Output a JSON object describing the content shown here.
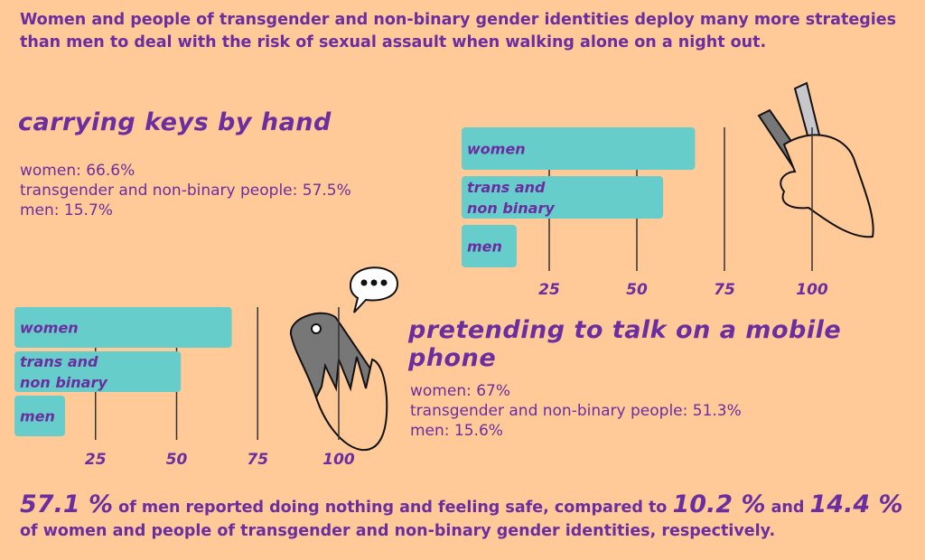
{
  "intro": "Women and people of transgender and non-binary gender identities deploy many more strategies than men to deal with the risk of sexual assault when walking alone on a night out.",
  "colors": {
    "background": "#FFCA97",
    "text": "#6A2EA0",
    "bar": "#66CDCA"
  },
  "keys_section": {
    "heading": "carrying keys by hand",
    "stats": [
      "women: 66.6%",
      "transgender and non-binary people: 57.5%",
      "men: 15.7%"
    ]
  },
  "phone_section": {
    "heading": "pretending to talk on a mobile phone",
    "stats": [
      "women: 67%",
      "transgender and non-binary people: 51.3%",
      "men: 15.6%"
    ]
  },
  "chart_data": [
    {
      "type": "bar",
      "title": "carrying keys by hand",
      "categories": [
        "women",
        "trans and\nnon binary",
        "men"
      ],
      "values": [
        66.6,
        57.5,
        15.7
      ],
      "xticks": [
        "25",
        "50",
        "75",
        "100"
      ],
      "xlim": [
        0,
        100
      ],
      "orientation": "horizontal",
      "grid": true
    },
    {
      "type": "bar",
      "title": "pretending to talk on a mobile phone",
      "categories": [
        "women",
        "trans and\nnon binary",
        "men"
      ],
      "values": [
        67,
        51.3,
        15.6
      ],
      "xticks": [
        "25",
        "50",
        "75",
        "100"
      ],
      "xlim": [
        0,
        100
      ],
      "orientation": "horizontal",
      "grid": true
    }
  ],
  "footer": {
    "men_pct": "57.1 %",
    "text1": " of men reported doing nothing and feeling safe, compared to ",
    "women_pct": "10.2 %",
    "text2": " and ",
    "trans_pct": "14.4 %",
    "text3": " of women and people of transgender and non-binary gender identities, respectively."
  }
}
